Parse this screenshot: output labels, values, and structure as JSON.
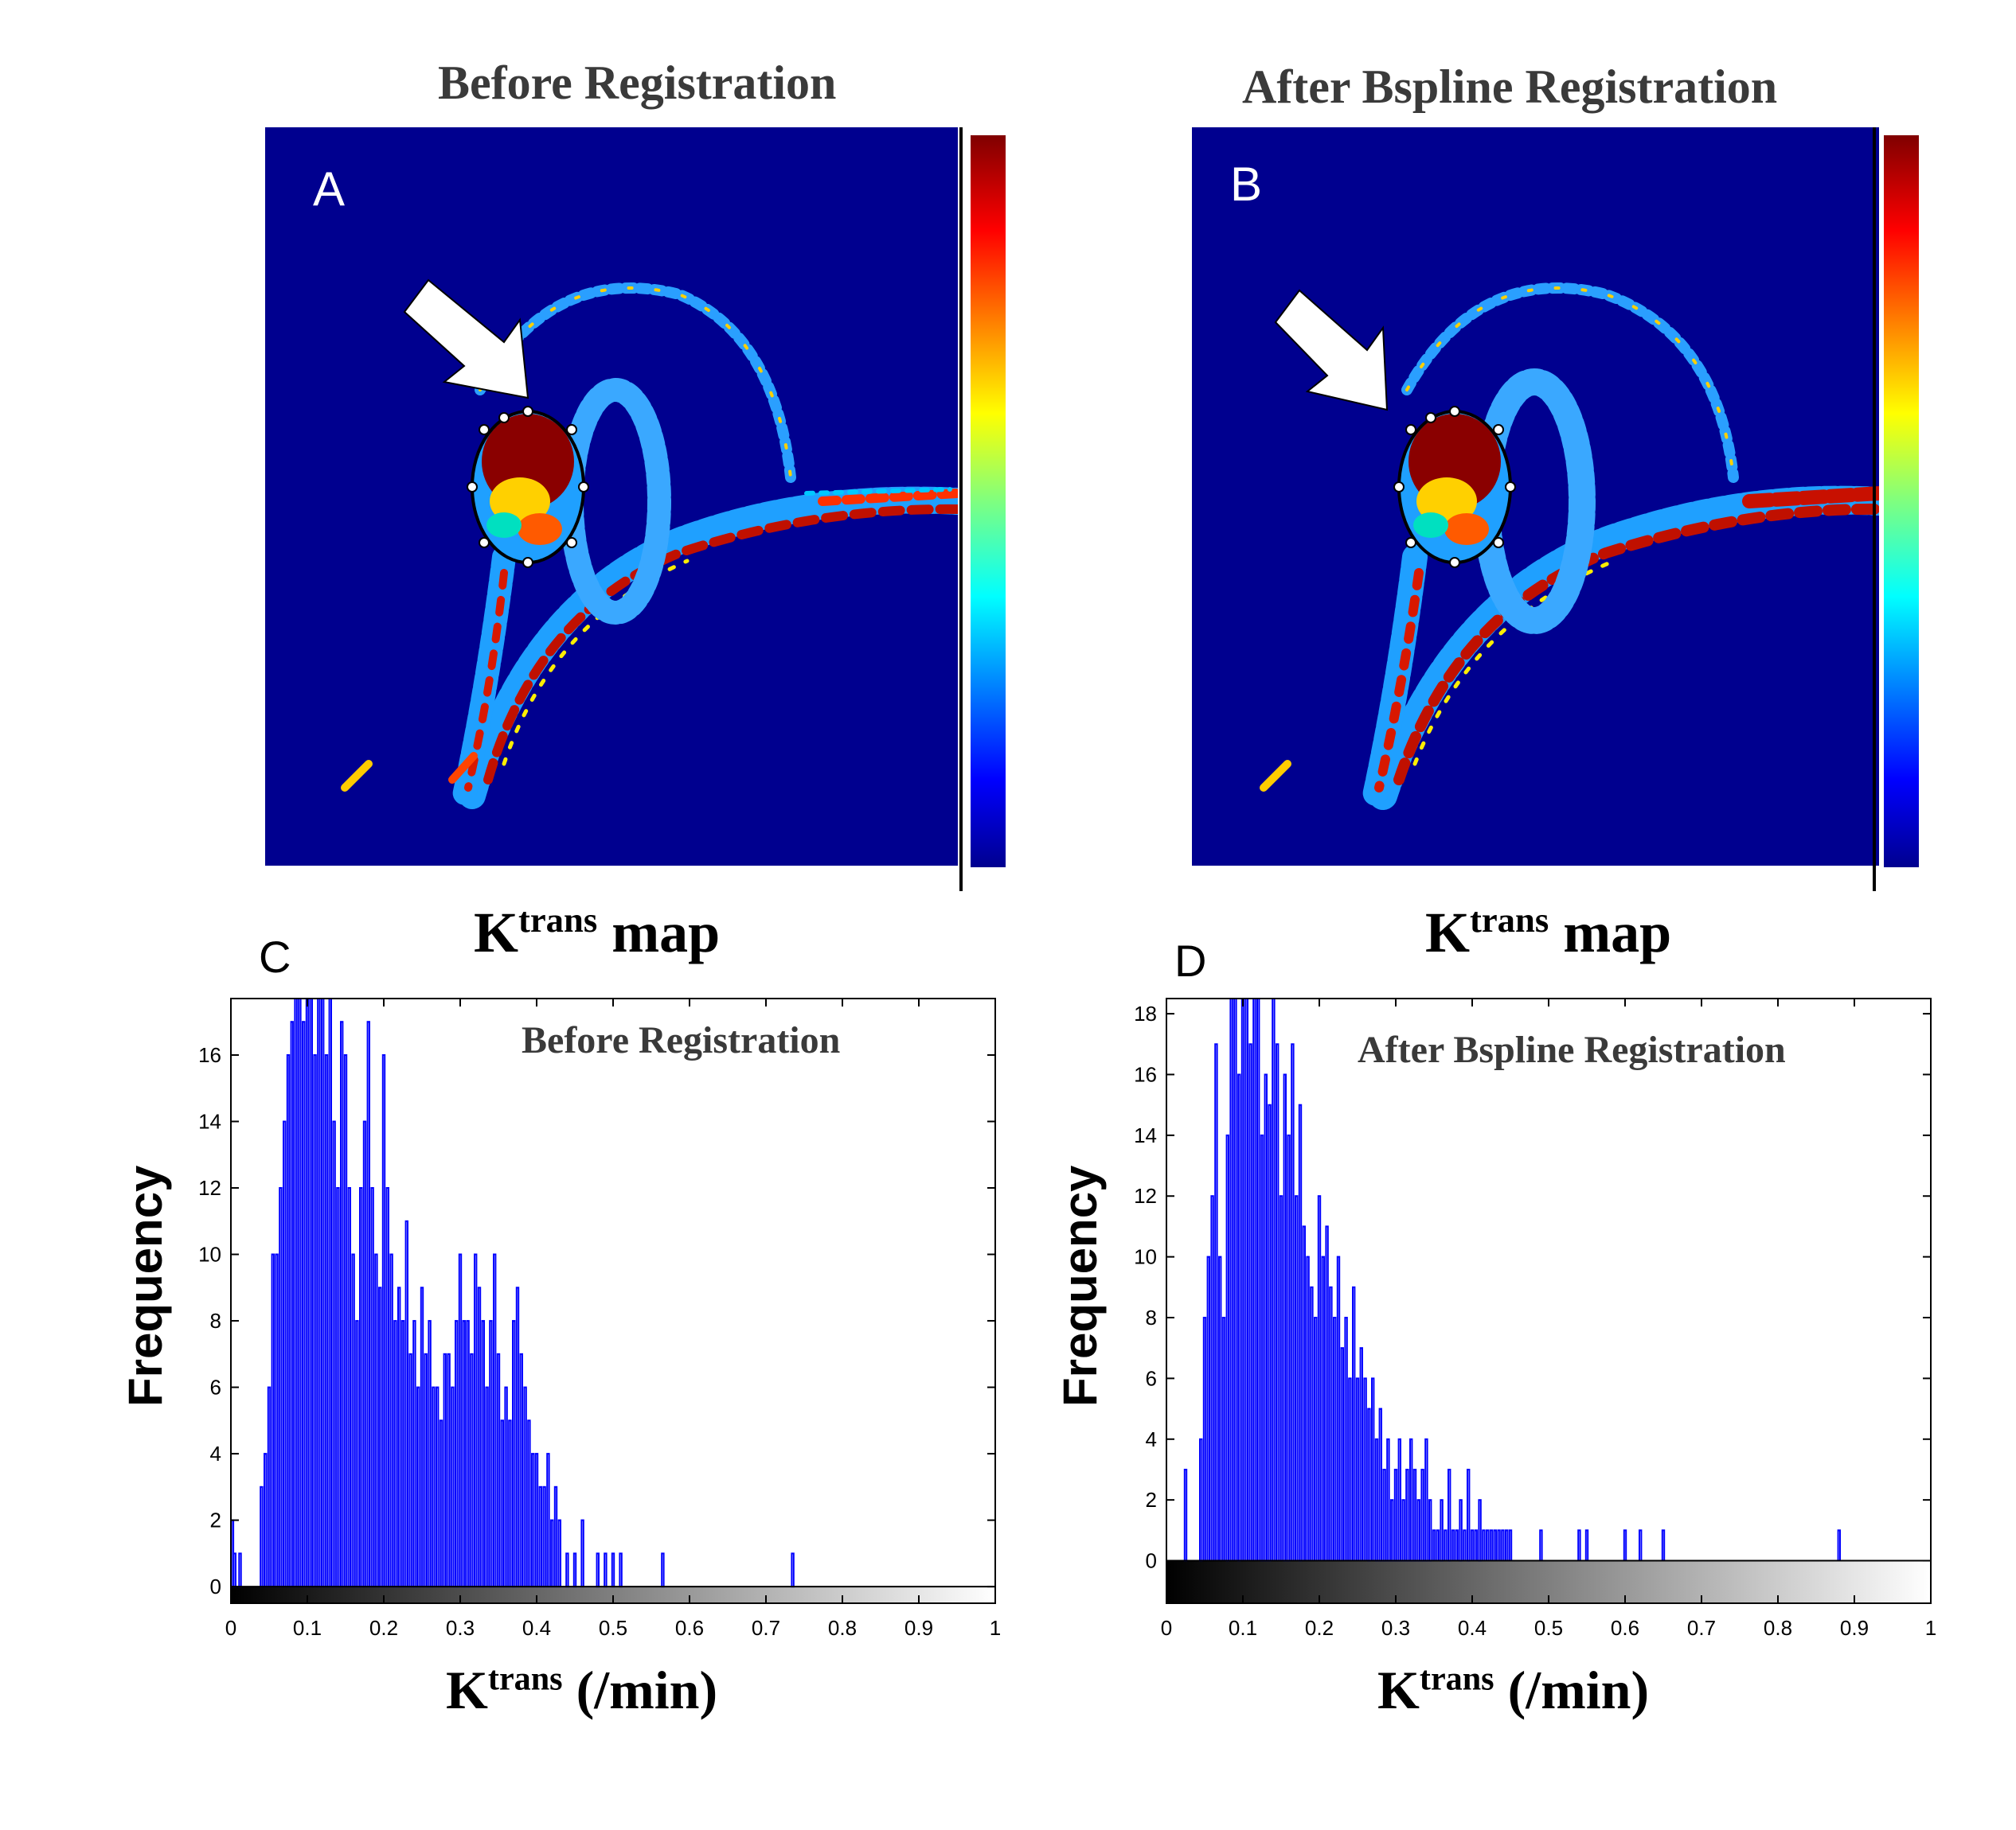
{
  "panels": {
    "A": {
      "letter": "A",
      "title": "Before Registration",
      "map_label": "K",
      "map_label_sup": "trans",
      "map_label_suffix": " map"
    },
    "B": {
      "letter": "B",
      "title": "After  Bspline Registration",
      "map_label": "K",
      "map_label_sup": "trans",
      "map_label_suffix": " map"
    }
  },
  "colors": {
    "map_background": "#00008f",
    "hist_bar": "#0000ff"
  },
  "chart_data": [
    {
      "type": "bar",
      "panel": "C",
      "title": "Before Registration",
      "ylabel": "Frequency",
      "xlabel": "K",
      "xlabel_sup": "trans",
      "xlabel_suffix": " (/min)",
      "xlim": [
        0,
        1
      ],
      "ylim": [
        -0.5,
        17.7
      ],
      "xticks": [
        "0",
        "0.1",
        "0.2",
        "0.3",
        "0.4",
        "0.5",
        "0.6",
        "0.7",
        "0.8",
        "0.9",
        "1"
      ],
      "yticks": [
        "0",
        "2",
        "4",
        "6",
        "8",
        "10",
        "12",
        "14",
        "16"
      ],
      "bin_width": 0.0025,
      "x": [
        0.002,
        0.005,
        0.012,
        0.04,
        0.045,
        0.05,
        0.055,
        0.06,
        0.065,
        0.07,
        0.075,
        0.08,
        0.085,
        0.09,
        0.095,
        0.1,
        0.105,
        0.11,
        0.115,
        0.12,
        0.125,
        0.13,
        0.135,
        0.14,
        0.145,
        0.15,
        0.155,
        0.16,
        0.165,
        0.17,
        0.175,
        0.18,
        0.185,
        0.19,
        0.195,
        0.2,
        0.205,
        0.21,
        0.215,
        0.22,
        0.225,
        0.23,
        0.235,
        0.24,
        0.245,
        0.25,
        0.255,
        0.26,
        0.265,
        0.27,
        0.275,
        0.28,
        0.285,
        0.29,
        0.295,
        0.3,
        0.305,
        0.31,
        0.315,
        0.32,
        0.325,
        0.33,
        0.335,
        0.34,
        0.345,
        0.35,
        0.355,
        0.36,
        0.365,
        0.37,
        0.375,
        0.38,
        0.385,
        0.39,
        0.395,
        0.4,
        0.405,
        0.41,
        0.415,
        0.42,
        0.425,
        0.43,
        0.44,
        0.45,
        0.46,
        0.48,
        0.49,
        0.5,
        0.51,
        0.565,
        0.59,
        0.63,
        0.67,
        0.71,
        0.735,
        0.75
      ],
      "y": [
        2,
        1,
        1,
        3,
        4,
        6,
        10,
        10,
        12,
        14,
        16,
        17,
        17.7,
        17.7,
        17,
        17.7,
        17.7,
        16,
        17.7,
        17.7,
        16,
        17.7,
        14,
        12,
        17,
        16,
        12,
        10,
        8,
        12,
        14,
        17,
        12,
        10,
        9,
        16,
        12,
        10,
        8,
        9,
        8,
        11,
        7,
        8,
        6,
        9,
        7,
        8,
        6,
        6,
        5,
        7,
        7,
        6,
        8,
        10,
        8,
        8,
        7,
        10,
        9,
        8,
        6,
        8,
        10,
        7,
        5,
        6,
        5,
        8,
        9,
        7,
        6,
        5,
        4,
        4,
        3,
        3,
        4,
        2,
        3,
        2,
        1,
        1,
        2,
        1,
        1,
        1,
        1,
        1,
        0,
        0,
        0,
        0,
        1,
        0
      ]
    },
    {
      "type": "bar",
      "panel": "D",
      "title": "After Bspline Registration",
      "ylabel": "Frequency",
      "xlabel": "K",
      "xlabel_sup": "trans",
      "xlabel_suffix": " (/min)",
      "xlim": [
        0,
        1
      ],
      "ylim": [
        -1.4,
        18.5
      ],
      "xticks": [
        "0",
        "0.1",
        "0.2",
        "0.3",
        "0.4",
        "0.5",
        "0.6",
        "0.7",
        "0.8",
        "0.9",
        "1"
      ],
      "yticks": [
        "0",
        "2",
        "4",
        "6",
        "8",
        "10",
        "12",
        "14",
        "16",
        "18"
      ],
      "bin_width": 0.0025,
      "x": [
        0.025,
        0.045,
        0.05,
        0.055,
        0.06,
        0.065,
        0.07,
        0.075,
        0.08,
        0.085,
        0.09,
        0.095,
        0.1,
        0.105,
        0.11,
        0.115,
        0.12,
        0.125,
        0.13,
        0.135,
        0.14,
        0.145,
        0.15,
        0.155,
        0.16,
        0.165,
        0.17,
        0.175,
        0.18,
        0.185,
        0.19,
        0.195,
        0.2,
        0.205,
        0.21,
        0.215,
        0.22,
        0.225,
        0.23,
        0.235,
        0.24,
        0.245,
        0.25,
        0.255,
        0.26,
        0.265,
        0.27,
        0.275,
        0.28,
        0.285,
        0.29,
        0.295,
        0.3,
        0.305,
        0.31,
        0.315,
        0.32,
        0.325,
        0.33,
        0.335,
        0.34,
        0.345,
        0.35,
        0.355,
        0.36,
        0.365,
        0.37,
        0.375,
        0.38,
        0.385,
        0.39,
        0.395,
        0.4,
        0.405,
        0.41,
        0.415,
        0.42,
        0.425,
        0.43,
        0.435,
        0.44,
        0.445,
        0.45,
        0.49,
        0.54,
        0.55,
        0.6,
        0.62,
        0.65,
        0.88,
        0.9
      ],
      "y": [
        3,
        4,
        8,
        10,
        12,
        17,
        10,
        8,
        14,
        18.5,
        18.5,
        16,
        18.5,
        18.5,
        17,
        18.5,
        18.5,
        14,
        16,
        15,
        18.5,
        17,
        12,
        16,
        14,
        17,
        12,
        15,
        11,
        10,
        9,
        8,
        12,
        10,
        11,
        9,
        8,
        10,
        7,
        8,
        6,
        9,
        6,
        7,
        6,
        5,
        6,
        4,
        5,
        3,
        4,
        2,
        3,
        4,
        2,
        3,
        4,
        3,
        2,
        3,
        4,
        2,
        1,
        1,
        2,
        1,
        3,
        1,
        1,
        2,
        1,
        3,
        1,
        1,
        2,
        1,
        1,
        1,
        1,
        1,
        1,
        1,
        1,
        1,
        1,
        1,
        1,
        1,
        1,
        1,
        0
      ]
    }
  ]
}
